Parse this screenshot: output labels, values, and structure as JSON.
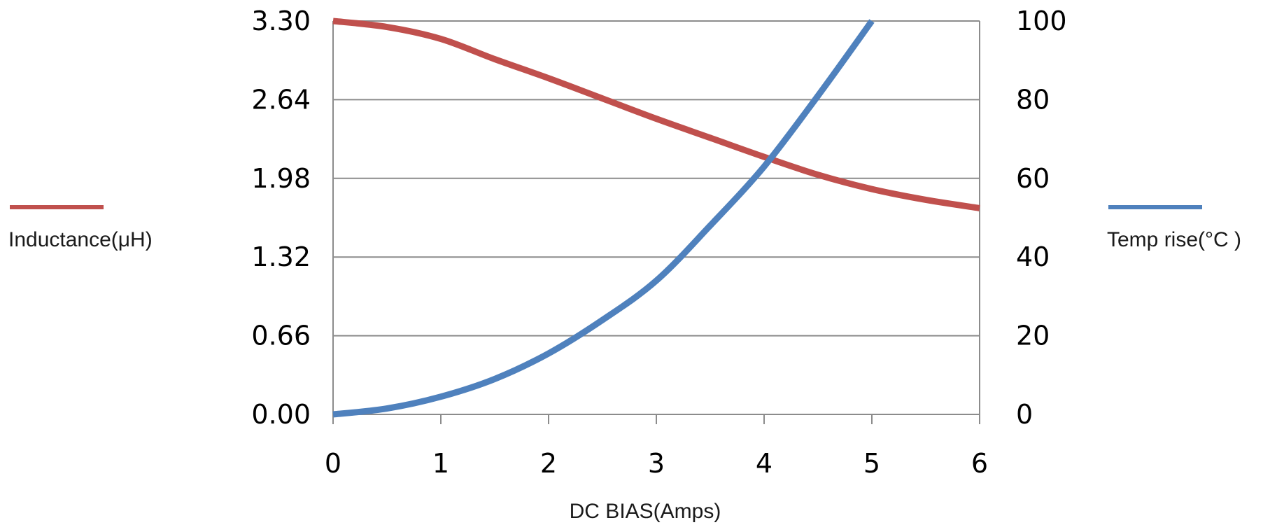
{
  "chart_data": {
    "type": "line",
    "xlabel": "DC BIAS(Amps)",
    "x_ticks": [
      "0",
      "1",
      "2",
      "3",
      "4",
      "5",
      "6"
    ],
    "xlim": [
      0,
      6
    ],
    "y_left_ticks": [
      "0.00",
      "0.66",
      "1.32",
      "1.98",
      "2.64",
      "3.30"
    ],
    "y_left_lim": [
      0,
      3.3
    ],
    "y_right_ticks": [
      "0",
      "20",
      "40",
      "60",
      "80",
      "100"
    ],
    "y_right_lim": [
      0,
      100
    ],
    "grid": true,
    "series": [
      {
        "name": "Inductance(μH)",
        "axis": "left",
        "color": "#c0504d",
        "x": [
          0,
          0.5,
          1,
          1.5,
          2,
          2.5,
          3,
          3.5,
          4,
          4.5,
          5,
          5.5,
          6
        ],
        "y": [
          3.3,
          3.25,
          3.15,
          2.98,
          2.82,
          2.65,
          2.48,
          2.32,
          2.16,
          2.01,
          1.89,
          1.8,
          1.73
        ]
      },
      {
        "name": "Temp rise(°C )",
        "axis": "right",
        "color": "#4f81bd",
        "x": [
          0,
          0.5,
          1,
          1.5,
          2,
          2.5,
          3,
          3.5,
          4,
          4.5,
          5
        ],
        "y": [
          0,
          1.5,
          4.5,
          9,
          15.5,
          24,
          34,
          48,
          63,
          81,
          100
        ]
      }
    ]
  }
}
